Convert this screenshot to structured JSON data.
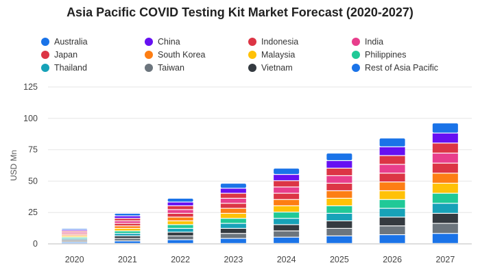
{
  "chart_data": {
    "type": "bar",
    "stacked": true,
    "title": "Asia Pacific COVID Testing Kit Market Forecast (2020-2027)",
    "xlabel": "",
    "ylabel": "USD Mn",
    "ylim": [
      0,
      125
    ],
    "yticks": [
      0,
      25,
      50,
      75,
      100,
      125
    ],
    "grid": true,
    "legend_position": "top",
    "categories": [
      "2020",
      "2021",
      "2022",
      "2023",
      "2024",
      "2025",
      "2026",
      "2027"
    ],
    "series": [
      {
        "name": "Australia",
        "color": "#1a73e8",
        "values": [
          1.0,
          2.0,
          3.0,
          4.0,
          5.0,
          6.0,
          7.0,
          8.0
        ]
      },
      {
        "name": "Taiwan",
        "color": "#6c757d",
        "values": [
          1.0,
          2.0,
          3.0,
          4.0,
          5.0,
          6.0,
          7.0,
          8.0
        ]
      },
      {
        "name": "Vietnam",
        "color": "#343a40",
        "values": [
          1.0,
          2.0,
          3.0,
          4.0,
          5.0,
          6.0,
          7.0,
          8.0
        ]
      },
      {
        "name": "Thailand",
        "color": "#17a2b8",
        "values": [
          1.0,
          2.0,
          3.0,
          4.0,
          5.0,
          6.0,
          7.0,
          8.0
        ]
      },
      {
        "name": "Philippines",
        "color": "#20c997",
        "values": [
          1.0,
          2.0,
          3.0,
          4.0,
          5.0,
          6.0,
          7.0,
          8.0
        ]
      },
      {
        "name": "Malaysia",
        "color": "#ffc107",
        "values": [
          1.0,
          2.0,
          3.0,
          4.0,
          5.0,
          6.0,
          7.0,
          8.0
        ]
      },
      {
        "name": "South Korea",
        "color": "#fd7e14",
        "values": [
          1.0,
          2.0,
          3.0,
          4.0,
          5.0,
          6.0,
          7.0,
          8.0
        ]
      },
      {
        "name": "Japan",
        "color": "#dc3545",
        "values": [
          1.0,
          2.0,
          3.0,
          4.0,
          5.0,
          6.0,
          7.0,
          8.0
        ]
      },
      {
        "name": "India",
        "color": "#e83e8c",
        "values": [
          1.0,
          2.0,
          3.0,
          4.0,
          5.0,
          6.0,
          7.0,
          8.0
        ]
      },
      {
        "name": "Indonesia",
        "color": "#dc3545",
        "values": [
          1.0,
          2.0,
          3.0,
          4.0,
          5.0,
          6.0,
          7.0,
          8.0
        ]
      },
      {
        "name": "China",
        "color": "#6610f2",
        "values": [
          1.0,
          2.0,
          3.0,
          4.0,
          5.0,
          6.0,
          7.0,
          8.0
        ]
      },
      {
        "name": "Rest of Asia Pacific",
        "color": "#1a73e8",
        "values": [
          1.0,
          2.0,
          3.0,
          4.0,
          5.0,
          6.0,
          7.0,
          8.0
        ]
      }
    ],
    "legend": [
      {
        "name": "Australia",
        "color": "#1a73e8"
      },
      {
        "name": "China",
        "color": "#6610f2"
      },
      {
        "name": "Indonesia",
        "color": "#dc3545"
      },
      {
        "name": "India",
        "color": "#e83e8c"
      },
      {
        "name": "Japan",
        "color": "#dc3545"
      },
      {
        "name": "South Korea",
        "color": "#fd7e14"
      },
      {
        "name": "Malaysia",
        "color": "#ffc107"
      },
      {
        "name": "Philippines",
        "color": "#20c997"
      },
      {
        "name": "Thailand",
        "color": "#17a2b8"
      },
      {
        "name": "Taiwan",
        "color": "#6c757d"
      },
      {
        "name": "Vietnam",
        "color": "#343a40"
      },
      {
        "name": "Rest of Asia Pacific",
        "color": "#1a73e8"
      }
    ]
  }
}
